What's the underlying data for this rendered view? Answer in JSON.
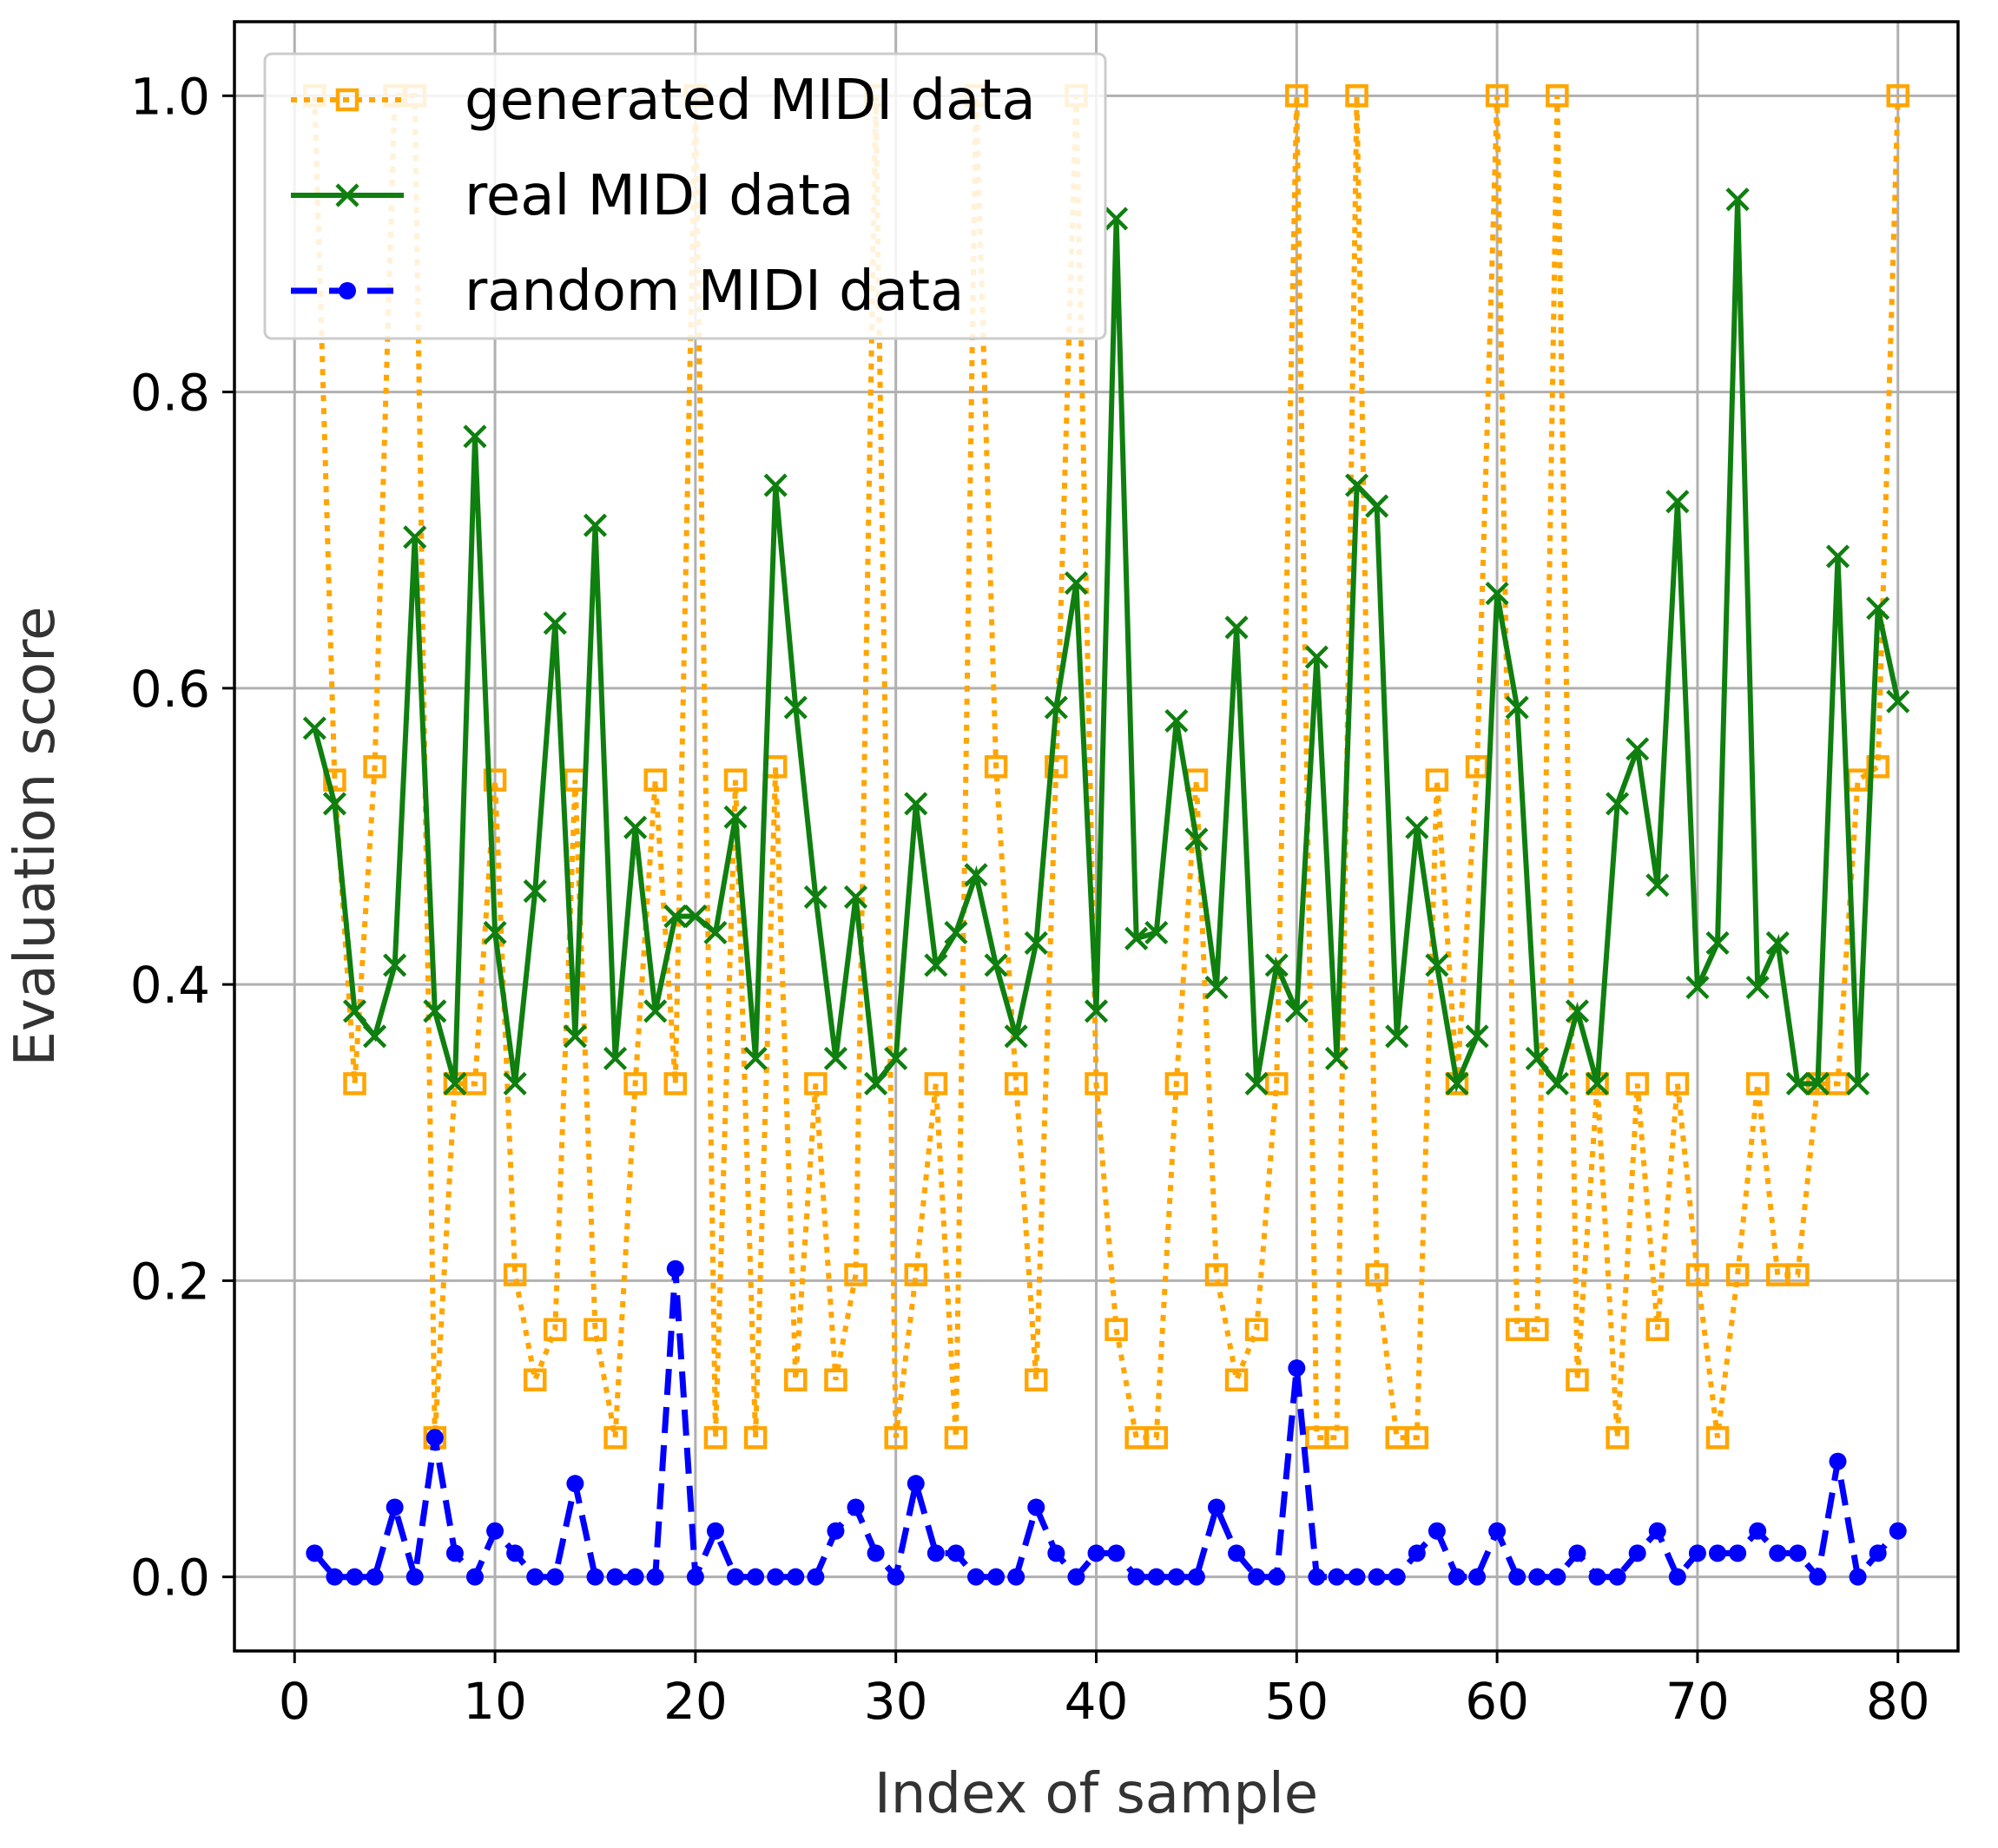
{
  "chart_data": {
    "type": "line",
    "title": "",
    "xlabel": "Index of sample",
    "ylabel": "Evaluation score",
    "xlim": [
      -3,
      83
    ],
    "ylim": [
      -0.05,
      1.05
    ],
    "xticks": [
      0,
      10,
      20,
      30,
      40,
      50,
      60,
      70,
      80
    ],
    "xtick_labels": [
      "0",
      "10",
      "20",
      "30",
      "40",
      "50",
      "60",
      "70",
      "80"
    ],
    "yticks": [
      0.0,
      0.2,
      0.4,
      0.6,
      0.8,
      1.0
    ],
    "ytick_labels": [
      "0.0",
      "0.2",
      "0.4",
      "0.6",
      "0.8",
      "1.0"
    ],
    "grid": true,
    "legend_position": "top-left",
    "x": [
      1,
      2,
      3,
      4,
      5,
      6,
      7,
      8,
      9,
      10,
      11,
      12,
      13,
      14,
      15,
      16,
      17,
      18,
      19,
      20,
      21,
      22,
      23,
      24,
      25,
      26,
      27,
      28,
      29,
      30,
      31,
      32,
      33,
      34,
      35,
      36,
      37,
      38,
      39,
      40,
      41,
      42,
      43,
      44,
      45,
      46,
      47,
      48,
      49,
      50,
      51,
      52,
      53,
      54,
      55,
      56,
      57,
      58,
      59,
      60,
      61,
      62,
      63,
      64,
      65,
      66,
      67,
      68,
      69,
      70,
      71,
      72,
      73,
      74,
      75,
      76,
      77,
      78,
      79,
      80
    ],
    "series": [
      {
        "name": "generated MIDI data",
        "color": "#ffa500",
        "line_style": "dotted",
        "marker": "square",
        "values": [
          1.0,
          0.538,
          0.333,
          0.547,
          1.0,
          1.0,
          0.094,
          0.333,
          0.333,
          0.538,
          0.204,
          0.133,
          0.167,
          0.538,
          0.167,
          0.094,
          0.333,
          0.538,
          0.333,
          1.0,
          0.094,
          0.538,
          0.094,
          0.547,
          0.133,
          0.333,
          0.133,
          0.204,
          1.0,
          0.094,
          0.204,
          0.333,
          0.094,
          1.0,
          0.547,
          0.333,
          0.133,
          0.547,
          1.0,
          0.333,
          0.167,
          0.094,
          0.094,
          0.333,
          0.538,
          0.204,
          0.133,
          0.167,
          0.333,
          1.0,
          0.094,
          0.094,
          1.0,
          0.204,
          0.094,
          0.094,
          0.538,
          0.333,
          0.547,
          1.0,
          0.167,
          0.167,
          1.0,
          0.133,
          0.333,
          0.094,
          0.333,
          0.167,
          0.333,
          0.204,
          0.094,
          0.204,
          0.333,
          0.204,
          0.204,
          0.333,
          0.333,
          0.538,
          0.547,
          1.0
        ]
      },
      {
        "name": "real MIDI data",
        "color": "#0f7f0f",
        "line_style": "solid",
        "marker": "x",
        "values": [
          0.573,
          0.522,
          0.382,
          0.365,
          0.413,
          0.702,
          0.382,
          0.333,
          0.77,
          0.435,
          0.333,
          0.463,
          0.644,
          0.365,
          0.71,
          0.35,
          0.506,
          0.382,
          0.446,
          0.446,
          0.435,
          0.513,
          0.35,
          0.737,
          0.587,
          0.459,
          0.35,
          0.459,
          0.333,
          0.35,
          0.522,
          0.413,
          0.435,
          0.474,
          0.413,
          0.365,
          0.428,
          0.587,
          0.671,
          0.382,
          0.917,
          0.431,
          0.435,
          0.578,
          0.498,
          0.398,
          0.641,
          0.333,
          0.413,
          0.382,
          0.621,
          0.35,
          0.737,
          0.723,
          0.365,
          0.506,
          0.413,
          0.333,
          0.365,
          0.664,
          0.587,
          0.35,
          0.333,
          0.382,
          0.333,
          0.522,
          0.559,
          0.467,
          0.726,
          0.398,
          0.428,
          0.93,
          0.398,
          0.428,
          0.333,
          0.333,
          0.689,
          0.333,
          0.654,
          0.591
        ]
      },
      {
        "name": "random MIDI data",
        "color": "#0000ff",
        "line_style": "dashed",
        "marker": "dot",
        "values": [
          0.016,
          0.0,
          0.0,
          0.0,
          0.047,
          0.0,
          0.094,
          0.016,
          0.0,
          0.031,
          0.016,
          0.0,
          0.0,
          0.063,
          0.0,
          0.0,
          0.0,
          0.0,
          0.208,
          0.0,
          0.031,
          0.0,
          0.0,
          0.0,
          0.0,
          0.0,
          0.031,
          0.047,
          0.016,
          0.0,
          0.063,
          0.016,
          0.016,
          0.0,
          0.0,
          0.0,
          0.047,
          0.016,
          0.0,
          0.016,
          0.016,
          0.0,
          0.0,
          0.0,
          0.0,
          0.047,
          0.016,
          0.0,
          0.0,
          0.141,
          0.0,
          0.0,
          0.0,
          0.0,
          0.0,
          0.016,
          0.031,
          0.0,
          0.0,
          0.031,
          0.0,
          0.0,
          0.0,
          0.016,
          0.0,
          0.0,
          0.016,
          0.031,
          0.0,
          0.016,
          0.016,
          0.016,
          0.031,
          0.016,
          0.016,
          0.0,
          0.078,
          0.0,
          0.016,
          0.031
        ]
      }
    ]
  }
}
